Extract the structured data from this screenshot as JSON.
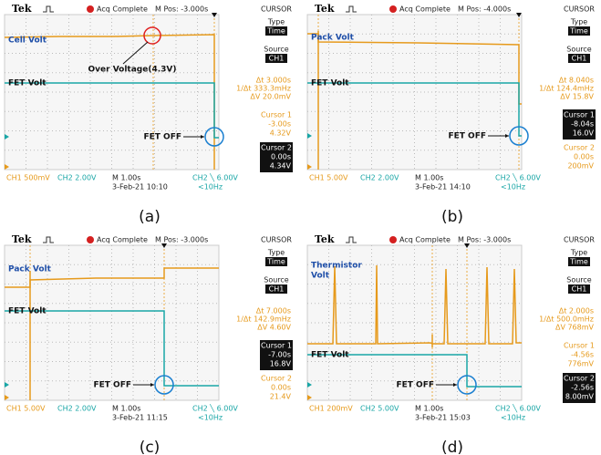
{
  "panels": [
    {
      "caption": "(a)",
      "header": {
        "brand": "Tek",
        "status": "Acq Complete",
        "position": "M Pos: -3.000s",
        "menu": "CURSOR"
      },
      "labels": {
        "top": [
          "Cell Volt"
        ],
        "fet": "FET Volt",
        "fet_off": "FET OFF",
        "note": "Over Voltage(4.3V)"
      },
      "menu": {
        "type_label": "Type",
        "type_value": "Time",
        "source_label": "Source",
        "source_value": "CH1",
        "readouts": [
          "Δt 3.000s",
          "1/Δt 333.3mHz",
          "ΔV 20.0mV"
        ],
        "cursors": [
          {
            "label": "Cursor 1",
            "lines": [
              "-3.00s",
              "4.32V"
            ],
            "active": false
          },
          {
            "label": "Cursor 2",
            "lines": [
              "0.00s",
              "4.34V"
            ],
            "active": true
          }
        ]
      },
      "footer": {
        "ch1": "CH1 500mV",
        "ch2": "CH2 2.00V",
        "timebase": "M 1.00s",
        "date": "3-Feb-21 10:10",
        "trigger": "CH2 ╲ 6.00V",
        "freq": "<10Hz"
      }
    },
    {
      "caption": "(b)",
      "header": {
        "brand": "Tek",
        "status": "Acq Complete",
        "position": "M Pos: -4.000s",
        "menu": "CURSOR"
      },
      "labels": {
        "top": [
          "Pack Volt"
        ],
        "fet": "FET Volt",
        "fet_off": "FET OFF"
      },
      "menu": {
        "type_label": "Type",
        "type_value": "Time",
        "source_label": "Source",
        "source_value": "CH1",
        "readouts": [
          "Δt 8.040s",
          "1/Δt 124.4mHz",
          "ΔV 15.8V"
        ],
        "cursors": [
          {
            "label": "Cursor 1",
            "lines": [
              "-8.04s",
              "16.0V"
            ],
            "active": true
          },
          {
            "label": "Cursor 2",
            "lines": [
              "0.00s",
              "200mV"
            ],
            "active": false
          }
        ]
      },
      "footer": {
        "ch1": "CH1 5.00V",
        "ch2": "CH2 2.00V",
        "timebase": "M 1.00s",
        "date": "3-Feb-21 14:10",
        "trigger": "CH2 ╲ 6.00V",
        "freq": "<10Hz"
      }
    },
    {
      "caption": "(c)",
      "header": {
        "brand": "Tek",
        "status": "Acq Complete",
        "position": "M Pos: -3.000s",
        "menu": "CURSOR"
      },
      "labels": {
        "top": [
          "Pack Volt"
        ],
        "fet": "FET Volt",
        "fet_off": "FET OFF"
      },
      "menu": {
        "type_label": "Type",
        "type_value": "Time",
        "source_label": "Source",
        "source_value": "CH1",
        "readouts": [
          "Δt 7.000s",
          "1/Δt 142.9mHz",
          "ΔV 4.60V"
        ],
        "cursors": [
          {
            "label": "Cursor 1",
            "lines": [
              "-7.00s",
              "16.8V"
            ],
            "active": true
          },
          {
            "label": "Cursor 2",
            "lines": [
              "0.00s",
              "21.4V"
            ],
            "active": false
          }
        ]
      },
      "footer": {
        "ch1": "CH1 5.00V",
        "ch2": "CH2 2.00V",
        "timebase": "M 1.00s",
        "date": "3-Feb-21 11:15",
        "trigger": "CH2 ╲ 6.00V",
        "freq": "<10Hz"
      }
    },
    {
      "caption": "(d)",
      "header": {
        "brand": "Tek",
        "status": "Acq Complete",
        "position": "M Pos: -3.000s",
        "menu": "CURSOR"
      },
      "labels": {
        "top": [
          "Thermistor",
          "Volt"
        ],
        "fet": "FET Volt",
        "fet_off": "FET OFF"
      },
      "menu": {
        "type_label": "Type",
        "type_value": "Time",
        "source_label": "Source",
        "source_value": "CH1",
        "readouts": [
          "Δt 2.000s",
          "1/Δt 500.0mHz",
          "ΔV 768mV"
        ],
        "cursors": [
          {
            "label": "Cursor 1",
            "lines": [
              "-4.56s",
              "776mV"
            ],
            "active": false
          },
          {
            "label": "Cursor 2",
            "lines": [
              "-2.56s",
              "8.00mV"
            ],
            "active": true
          }
        ]
      },
      "footer": {
        "ch1": "CH1 200mV",
        "ch2": "CH2 5.00V",
        "timebase": "M 1.00s",
        "date": "3-Feb-21 15:03",
        "trigger": "CH2 ╲ 6.00V",
        "freq": "<10Hz"
      }
    }
  ]
}
